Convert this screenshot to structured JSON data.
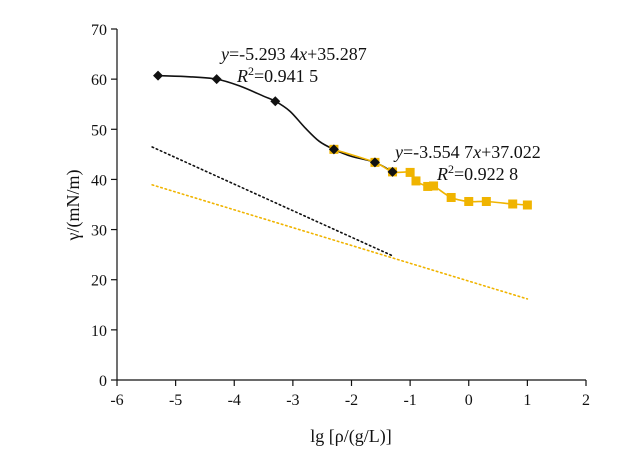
{
  "chart_data": {
    "type": "scatter",
    "title": "",
    "xlabel": "lg [ρ/(g/L)]",
    "ylabel": "γ/(mN/m)",
    "xlim": [
      -6,
      2
    ],
    "ylim": [
      0,
      70
    ],
    "x_ticks": [
      -6,
      -5,
      -4,
      -3,
      -2,
      -1,
      0,
      1,
      2
    ],
    "y_ticks": [
      0,
      10,
      20,
      30,
      40,
      50,
      60,
      70
    ],
    "grid": false,
    "legend": "none",
    "series": [
      {
        "color": "#111111",
        "marker": "diamond",
        "x": [
          -5.3,
          -4.3,
          -3.3,
          -2.3,
          -1.6,
          -1.3
        ],
        "y": [
          60.7,
          60.0,
          55.6,
          46.0,
          43.4,
          41.5
        ],
        "curve_x": [
          -5.3,
          -4.8,
          -4.3,
          -3.9,
          -3.5,
          -3.3,
          -3.05,
          -2.8,
          -2.55,
          -2.3,
          -2.0,
          -1.6,
          -1.3
        ],
        "curve_y": [
          60.7,
          60.5,
          60.0,
          58.6,
          56.6,
          55.6,
          53.6,
          50.4,
          47.6,
          46.0,
          44.6,
          43.4,
          41.5
        ],
        "fit": {
          "equation": "y=-5.293 4x+35.287",
          "r2": "R²=0.941 5",
          "slope": -5.2934,
          "intercept": 35.287,
          "range": [
            -5.4,
            -1.3
          ]
        }
      },
      {
        "color": "#f0b400",
        "marker": "square",
        "x": [
          -2.3,
          -1.6,
          -1.3,
          -1.0,
          -0.9,
          -0.7,
          -0.6,
          -0.3,
          0.0,
          0.3,
          0.75,
          1.0
        ],
        "y": [
          46.0,
          43.4,
          41.5,
          41.4,
          39.7,
          38.6,
          38.7,
          36.4,
          35.6,
          35.6,
          35.1,
          34.9
        ],
        "curve_x": [
          -2.3,
          -1.6,
          -1.3,
          -1.0,
          -0.9,
          -0.7,
          -0.6,
          -0.3,
          0.0,
          0.3,
          0.75,
          1.0
        ],
        "curve_y": [
          46.0,
          43.4,
          41.5,
          41.4,
          39.7,
          38.6,
          38.7,
          36.4,
          35.6,
          35.6,
          35.1,
          34.9
        ],
        "fit": {
          "equation": "y=-3.554 7x+37.022",
          "r2": "R²=0.922 8",
          "slope": -3.5547,
          "intercept": 37.022,
          "range": [
            -5.4,
            1.0
          ]
        }
      }
    ]
  }
}
